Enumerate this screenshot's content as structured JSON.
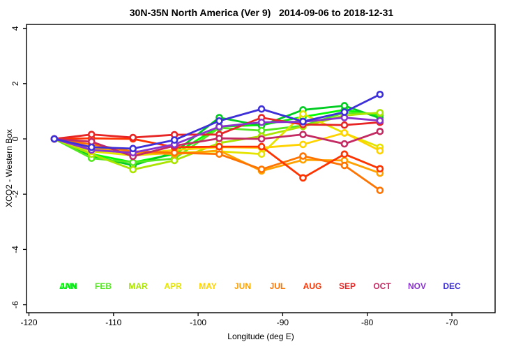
{
  "title": "30N-35N North America (Ver 9)   2014-09-06 to 2018-12-31",
  "axes": {
    "x": {
      "label": "Longitude (deg E)"
    },
    "y": {
      "label": "XCO2 - Western Box"
    }
  },
  "chart_data": {
    "type": "line",
    "title": "30N-35N North America (Ver 9)   2014-09-06 to 2018-12-31",
    "xlabel": "Longitude (deg E)",
    "ylabel": "XCO2 - Western Box",
    "x_ticks": [
      -120,
      -110,
      -100,
      -90,
      -80,
      -70
    ],
    "y_ticks": [
      4,
      2,
      0,
      -2,
      -4,
      -6
    ],
    "xlim": [
      -120.3,
      -64.9
    ],
    "ylim": [
      -6.4,
      4.15
    ],
    "grid": false,
    "legend_position": "bottom",
    "marker": "open-circle",
    "x": [
      -117,
      -112.6,
      -107.7,
      -102.8,
      -97.5,
      -92.5,
      -87.6,
      -82.7,
      -78.5
    ],
    "series": [
      {
        "name": "ANN",
        "color": "#00FF00",
        "values": [
          0,
          -0.55,
          -0.85,
          -0.55,
          0.45,
          0.5,
          0.8,
          1.05,
          0.85
        ]
      },
      {
        "name": "JAN",
        "color": "#00CC22",
        "values": [
          0,
          -0.61,
          -0.96,
          -0.49,
          0.77,
          0.48,
          1.05,
          1.2,
          0.75
        ]
      },
      {
        "name": "FEB",
        "color": "#55E822",
        "values": [
          0,
          -0.7,
          -0.85,
          -0.71,
          0.4,
          0.3,
          0.48,
          0.95,
          0.91
        ]
      },
      {
        "name": "MAR",
        "color": "#AAE400",
        "values": [
          0,
          -0.55,
          -1.11,
          -0.78,
          -0.15,
          0.1,
          0.45,
          0.85,
          0.95
        ]
      },
      {
        "name": "APR",
        "color": "#E4E400",
        "values": [
          0,
          -0.45,
          -0.6,
          -0.5,
          -0.45,
          -0.55,
          0.9,
          0.21,
          -0.3
        ]
      },
      {
        "name": "MAY",
        "color": "#FFD300",
        "values": [
          0,
          -0.35,
          -0.55,
          -0.4,
          -0.3,
          -0.32,
          -0.2,
          0.22,
          -0.43
        ]
      },
      {
        "name": "JUN",
        "color": "#FFA200",
        "values": [
          0,
          -0.3,
          -0.5,
          -0.55,
          -0.42,
          -1.16,
          -0.76,
          -0.78,
          -1.24
        ]
      },
      {
        "name": "JUL",
        "color": "#FF7300",
        "values": [
          0,
          -0.2,
          -0.45,
          -0.5,
          -0.55,
          -1.1,
          -0.62,
          -0.96,
          -1.86
        ]
      },
      {
        "name": "AUG",
        "color": "#FF3300",
        "values": [
          0,
          0.02,
          0.0,
          -0.3,
          -0.28,
          -0.28,
          -1.41,
          -0.55,
          -1.08
        ]
      },
      {
        "name": "SEP",
        "color": "#E82525",
        "values": [
          0,
          0.16,
          0.05,
          0.15,
          0.16,
          0.77,
          0.52,
          0.5,
          0.6
        ]
      },
      {
        "name": "OCT",
        "color": "#C42A62",
        "values": [
          0,
          -0.1,
          -0.63,
          -0.25,
          0.02,
          0.0,
          0.16,
          -0.18,
          0.27
        ]
      },
      {
        "name": "NOV",
        "color": "#8833CC",
        "values": [
          0,
          -0.4,
          -0.5,
          -0.2,
          0.44,
          0.6,
          0.62,
          0.77,
          0.66
        ]
      },
      {
        "name": "DEC",
        "color": "#3E30D8",
        "values": [
          0,
          -0.3,
          -0.35,
          -0.04,
          0.65,
          1.08,
          0.63,
          0.97,
          1.61
        ]
      }
    ],
    "legend": [
      {
        "label": "JAN",
        "color": "#00CC22",
        "slot": 0
      },
      {
        "label": "ANN",
        "color": "#00FF00",
        "slot": 0
      },
      {
        "label": "FEB",
        "color": "#55E822",
        "slot": 1
      },
      {
        "label": "MAR",
        "color": "#AAE400",
        "slot": 2
      },
      {
        "label": "APR",
        "color": "#E4E400",
        "slot": 3
      },
      {
        "label": "MAY",
        "color": "#FFD300",
        "slot": 4
      },
      {
        "label": "JUN",
        "color": "#FFA200",
        "slot": 5
      },
      {
        "label": "JUL",
        "color": "#FF7300",
        "slot": 6
      },
      {
        "label": "AUG",
        "color": "#FF3300",
        "slot": 7
      },
      {
        "label": "SEP",
        "color": "#E82525",
        "slot": 8
      },
      {
        "label": "OCT",
        "color": "#C42A62",
        "slot": 9
      },
      {
        "label": "NOV",
        "color": "#8833CC",
        "slot": 10
      },
      {
        "label": "DEC",
        "color": "#3E30D8",
        "slot": 11
      }
    ]
  }
}
